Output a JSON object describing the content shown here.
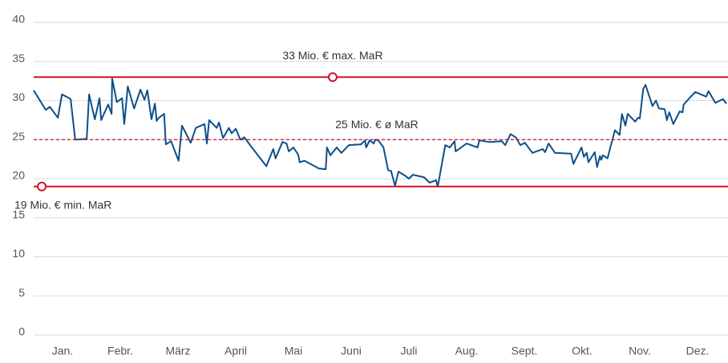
{
  "chart_data": {
    "type": "line",
    "xlim": [
      0,
      12
    ],
    "ylim": [
      0,
      40
    ],
    "yticks": [
      0,
      5,
      10,
      15,
      20,
      25,
      30,
      35,
      40
    ],
    "xticks": [
      {
        "value": 0.5,
        "label": "Jan."
      },
      {
        "value": 1.5,
        "label": "Febr."
      },
      {
        "value": 2.5,
        "label": "März"
      },
      {
        "value": 3.5,
        "label": "April"
      },
      {
        "value": 4.5,
        "label": "Mai"
      },
      {
        "value": 5.5,
        "label": "Juni"
      },
      {
        "value": 6.5,
        "label": "Juli"
      },
      {
        "value": 7.5,
        "label": "Aug."
      },
      {
        "value": 8.5,
        "label": "Sept."
      },
      {
        "value": 9.5,
        "label": "Okt."
      },
      {
        "value": 10.5,
        "label": "Nov."
      },
      {
        "value": 11.5,
        "label": "Dez."
      }
    ],
    "grid": true,
    "reference_lines": [
      {
        "value": 33,
        "label": "33 Mio. € max. MaR",
        "style": "solid",
        "marker_x": 5.18,
        "color": "#d0102a"
      },
      {
        "value": 25,
        "label": "25 Mio. € ø MaR",
        "style": "dashed",
        "color": "#d0102a"
      },
      {
        "value": 19,
        "label": "19 Mio. € min. MaR",
        "style": "solid",
        "marker_x": 0.14,
        "color": "#d0102a"
      }
    ],
    "series": [
      {
        "color": "#0d4f8b",
        "x": [
          0.0,
          0.21,
          0.28,
          0.42,
          0.49,
          0.64,
          0.72,
          0.92,
          0.96,
          1.06,
          1.14,
          1.17,
          1.29,
          1.35,
          1.36,
          1.44,
          1.53,
          1.57,
          1.63,
          1.74,
          1.85,
          1.92,
          1.97,
          2.04,
          2.1,
          2.13,
          2.17,
          2.26,
          2.29,
          2.38,
          2.51,
          2.57,
          2.72,
          2.81,
          2.96,
          3.0,
          3.04,
          3.17,
          3.21,
          3.28,
          3.38,
          3.43,
          3.5,
          3.58,
          3.65,
          3.76,
          4.03,
          4.15,
          4.19,
          4.31,
          4.38,
          4.42,
          4.5,
          4.58,
          4.61,
          4.69,
          4.94,
          5.06,
          5.08,
          5.14,
          5.25,
          5.33,
          5.46,
          5.67,
          5.74,
          5.76,
          5.82,
          5.89,
          5.92,
          5.97,
          6.06,
          6.14,
          6.19,
          6.26,
          6.32,
          6.43,
          6.5,
          6.57,
          6.76,
          6.86,
          6.97,
          7.0,
          7.13,
          7.21,
          7.29,
          7.31,
          7.5,
          7.69,
          7.72,
          7.89,
          8.11,
          8.17,
          8.26,
          8.35,
          8.43,
          8.51,
          8.64,
          8.82,
          8.86,
          8.92,
          9.03,
          9.31,
          9.35,
          9.49,
          9.53,
          9.58,
          9.61,
          9.72,
          9.76,
          9.81,
          9.83,
          9.86,
          9.94,
          10.07,
          10.15,
          10.19,
          10.25,
          10.29,
          10.42,
          10.47,
          10.5,
          10.56,
          10.6,
          10.72,
          10.78,
          10.83,
          10.93,
          10.97,
          11.01,
          11.08,
          11.19,
          11.24,
          11.26,
          11.46,
          11.65,
          11.69,
          11.81,
          11.94,
          12.0
        ],
        "values": [
          31.3,
          28.8,
          29.2,
          27.8,
          30.8,
          30.2,
          25.0,
          25.1,
          30.8,
          27.6,
          30.3,
          27.5,
          29.5,
          28.3,
          32.8,
          29.8,
          30.3,
          27.0,
          31.8,
          29.0,
          31.4,
          30.1,
          31.3,
          27.6,
          29.6,
          27.4,
          27.8,
          28.3,
          24.4,
          24.8,
          22.3,
          26.8,
          24.6,
          26.5,
          27.0,
          24.5,
          27.5,
          26.5,
          27.2,
          25.2,
          26.5,
          25.8,
          26.4,
          25.0,
          25.3,
          24.2,
          21.6,
          23.8,
          22.6,
          24.7,
          24.5,
          23.5,
          24.0,
          23.1,
          22.1,
          22.3,
          21.3,
          21.2,
          24.0,
          23.0,
          24.0,
          23.3,
          24.3,
          24.4,
          24.9,
          24.0,
          24.9,
          24.5,
          25.0,
          24.9,
          24.0,
          21.1,
          21.0,
          19.1,
          20.9,
          20.4,
          20.0,
          20.5,
          20.2,
          19.5,
          19.8,
          19.0,
          24.3,
          24.0,
          24.8,
          23.5,
          24.5,
          24.0,
          24.9,
          24.7,
          24.8,
          24.3,
          25.7,
          25.3,
          24.3,
          24.6,
          23.3,
          23.8,
          23.4,
          24.5,
          23.3,
          23.2,
          21.9,
          24.0,
          22.8,
          23.3,
          22.1,
          23.4,
          21.5,
          22.9,
          22.4,
          23.0,
          22.6,
          26.2,
          25.6,
          28.3,
          26.8,
          28.3,
          27.3,
          27.8,
          27.7,
          31.5,
          32.0,
          29.3,
          30.0,
          29.0,
          28.9,
          27.5,
          28.5,
          27.0,
          28.6,
          28.5,
          29.5,
          31.1,
          30.5,
          31.2,
          29.7,
          30.2,
          29.6
        ]
      }
    ]
  }
}
